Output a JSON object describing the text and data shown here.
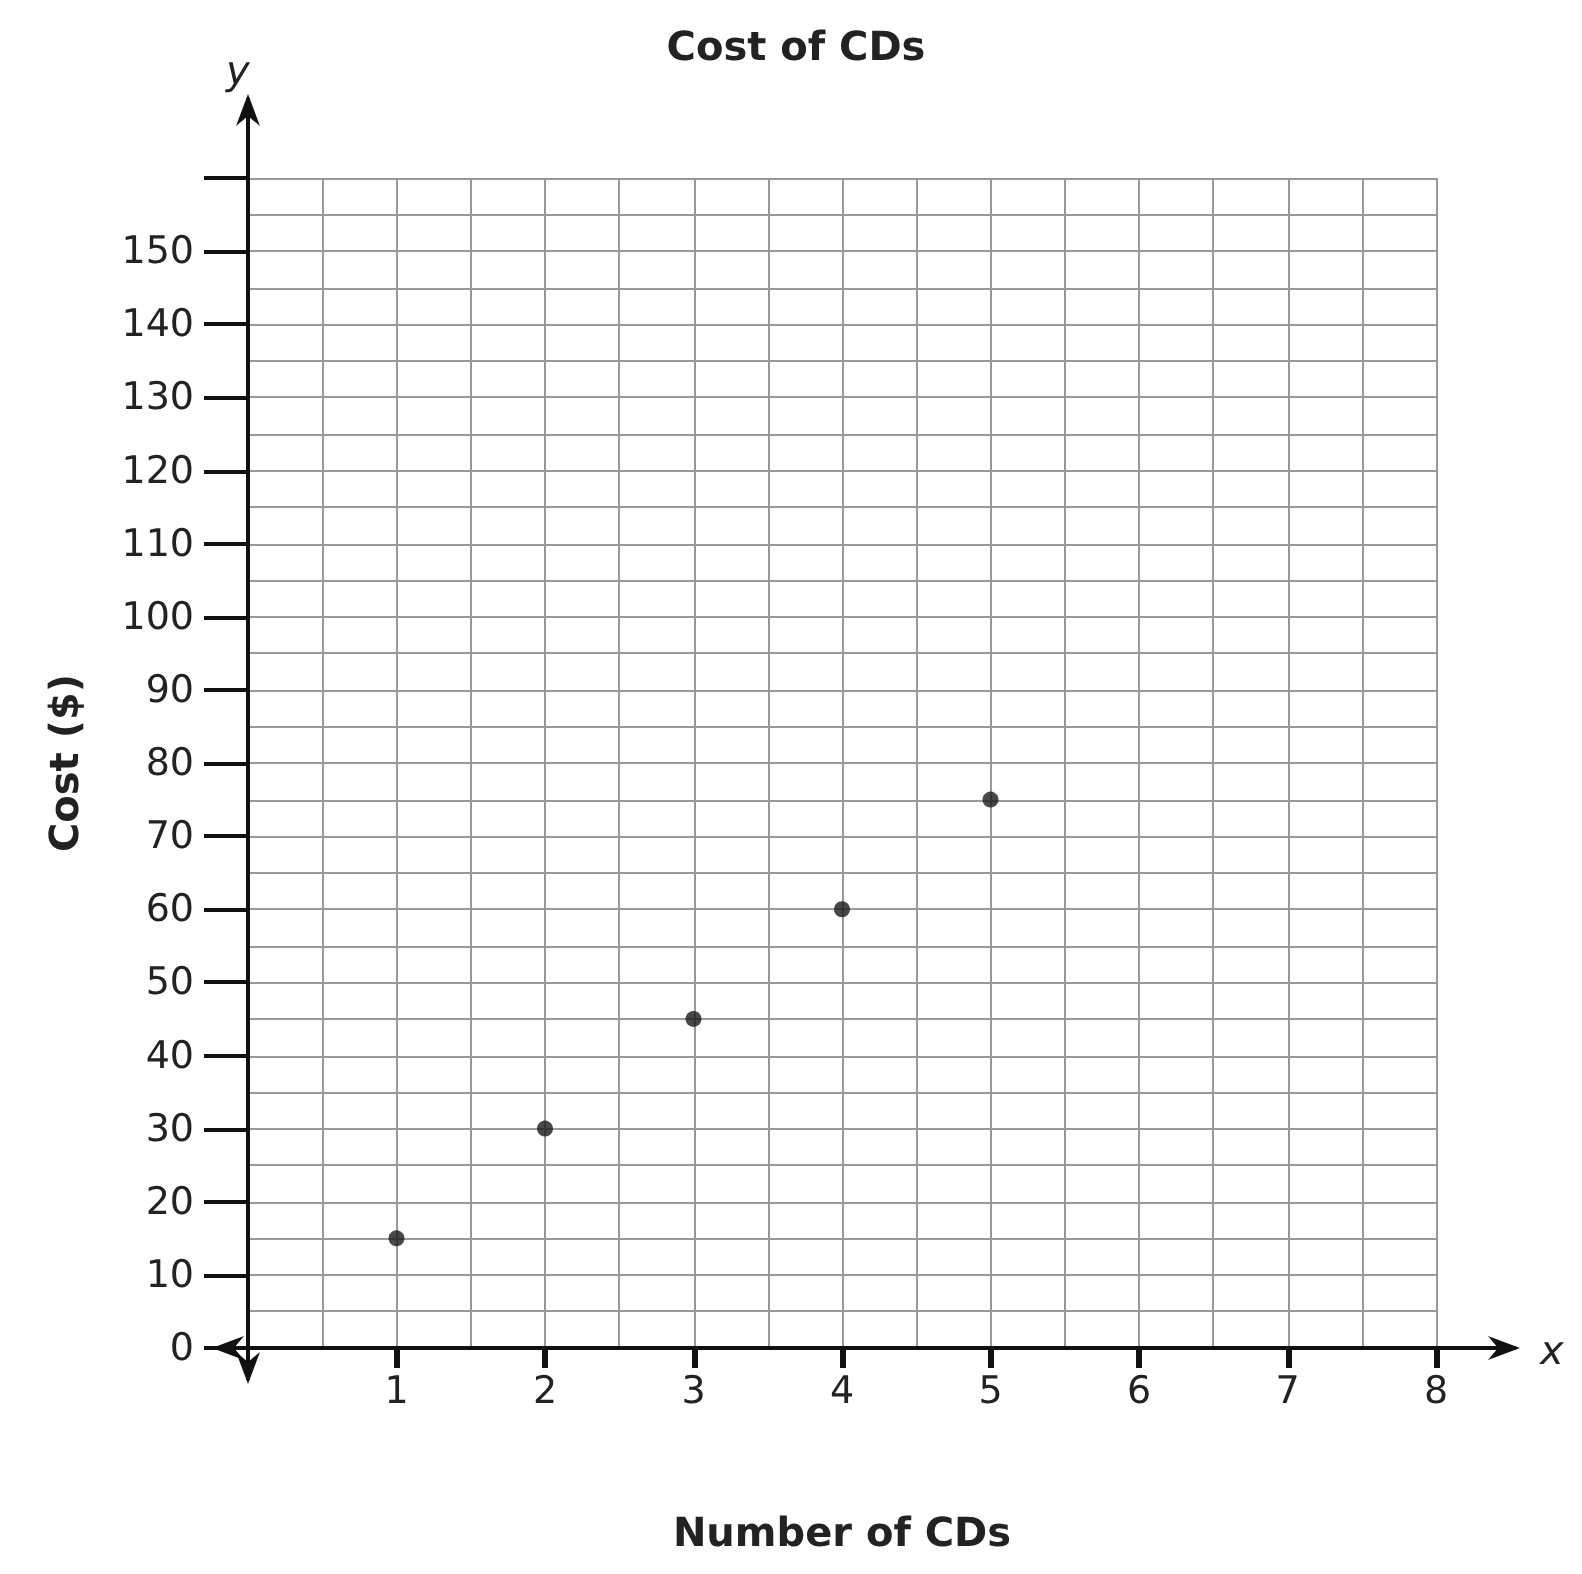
{
  "chart_data": {
    "type": "scatter",
    "title": "Cost of CDs",
    "xlabel": "Number of CDs",
    "ylabel": "Cost ($)",
    "annotations": [
      "x",
      "y"
    ],
    "x": [
      1,
      2,
      3,
      4,
      5
    ],
    "series": [
      {
        "color": "#1a1a1a",
        "values": [
          15,
          30,
          45,
          60,
          75
        ]
      }
    ],
    "xlim": [
      0,
      8
    ],
    "xticks": [
      1,
      2,
      3,
      4,
      5,
      6,
      7,
      8
    ],
    "ylim": [
      0,
      160
    ],
    "yticks": [
      {
        "value": 0,
        "label": "0"
      },
      10,
      20,
      30,
      40,
      50,
      60,
      70,
      80,
      90,
      100,
      110,
      120,
      130,
      140,
      150,
      {
        "value": 160,
        "label": null
      }
    ],
    "grid": true,
    "legend": false,
    "marker": "circle"
  }
}
